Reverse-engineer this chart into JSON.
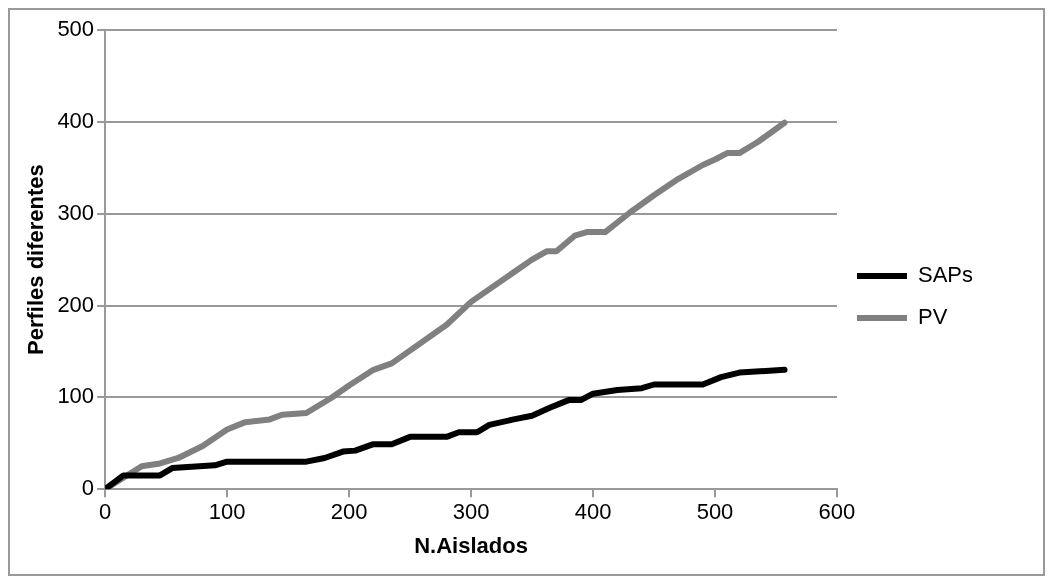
{
  "chart_data": {
    "type": "line",
    "xlabel": "N.Aislados",
    "ylabel": "Perfiles diferentes",
    "xlim": [
      0,
      600
    ],
    "xticks": [
      0,
      100,
      200,
      300,
      400,
      500,
      600
    ],
    "ylim": [
      0,
      500
    ],
    "yticks": [
      0,
      100,
      200,
      300,
      400,
      500
    ],
    "grid": "y",
    "legend": "right",
    "marker": "none",
    "line_style": "solid",
    "series": [
      {
        "name": "SAPs",
        "color": "#000000",
        "x": [
          0,
          15,
          45,
          55,
          90,
          100,
          165,
          180,
          195,
          205,
          220,
          235,
          250,
          280,
          290,
          305,
          315,
          335,
          350,
          365,
          380,
          390,
          400,
          420,
          440,
          450,
          490,
          505,
          520,
          557
        ],
        "values": [
          0,
          15,
          15,
          23,
          26,
          30,
          30,
          34,
          41,
          42,
          49,
          49,
          57,
          57,
          62,
          62,
          70,
          76,
          80,
          89,
          97,
          97,
          104,
          108,
          110,
          114,
          114,
          122,
          127,
          130
        ]
      },
      {
        "name": "PV",
        "color": "#808080",
        "x": [
          0,
          30,
          45,
          60,
          80,
          100,
          115,
          135,
          145,
          165,
          185,
          200,
          220,
          235,
          280,
          300,
          350,
          362,
          370,
          385,
          395,
          410,
          430,
          450,
          470,
          490,
          500,
          510,
          520,
          535,
          557
        ],
        "values": [
          0,
          25,
          28,
          34,
          47,
          65,
          73,
          76,
          81,
          83,
          99,
          113,
          130,
          137,
          179,
          204,
          250,
          259,
          259,
          276,
          280,
          280,
          301,
          320,
          338,
          353,
          359,
          366,
          366,
          378,
          399
        ]
      }
    ]
  }
}
